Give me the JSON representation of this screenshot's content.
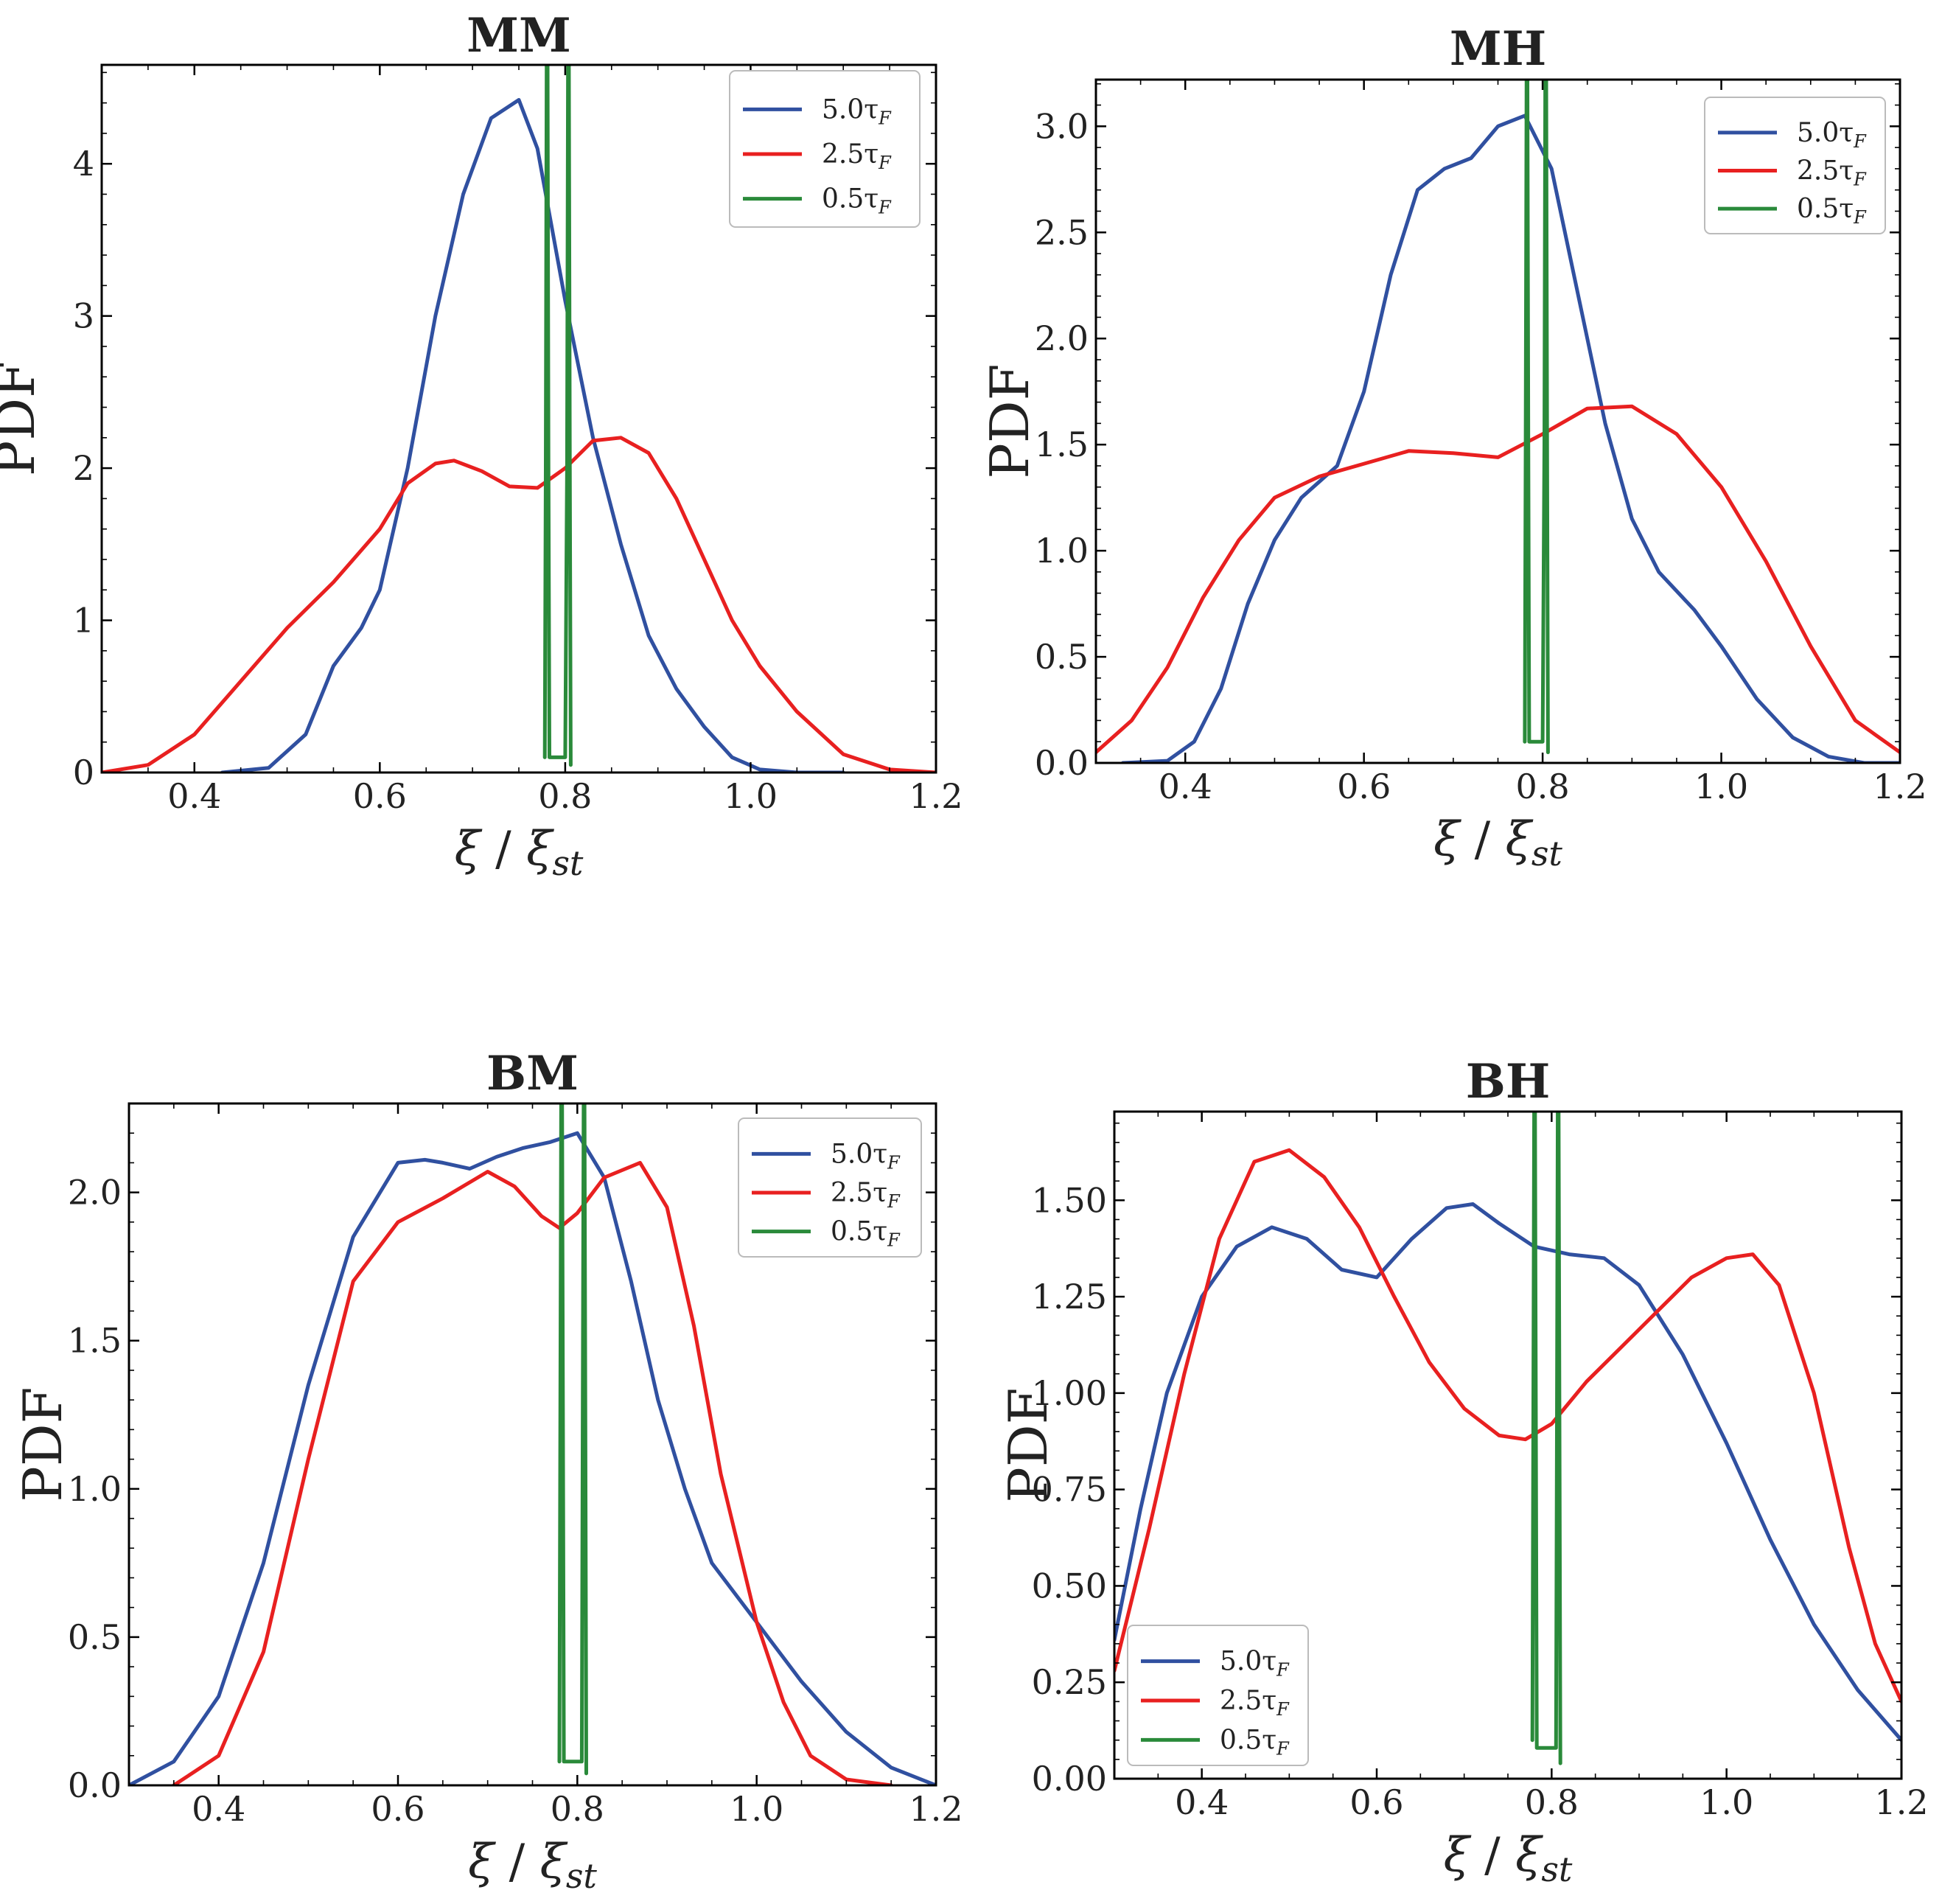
{
  "chart_data": [
    {
      "type": "line",
      "title": "MM",
      "xlabel": "ξ / ξ_st",
      "ylabel": "PDF",
      "xlim": [
        0.3,
        1.2
      ],
      "ylim": [
        0,
        4.65
      ],
      "xticks": [
        0.4,
        0.6,
        0.8,
        1.0,
        1.2
      ],
      "xtick_labels": [
        "0.4",
        "0.6",
        "0.8",
        "1.0",
        "1.2"
      ],
      "yticks": [
        0,
        1,
        2,
        3,
        4
      ],
      "ytick_labels": [
        "0",
        "1",
        "2",
        "3",
        "4"
      ],
      "legend_position": "top-right",
      "series": [
        {
          "name": "5.0τ_F",
          "color": "#3050a0",
          "x": [
            0.43,
            0.48,
            0.52,
            0.55,
            0.58,
            0.6,
            0.63,
            0.66,
            0.69,
            0.72,
            0.75,
            0.77,
            0.8,
            0.83,
            0.86,
            0.89,
            0.92,
            0.95,
            0.98,
            1.01,
            1.05,
            1.1
          ],
          "y": [
            0.0,
            0.03,
            0.25,
            0.7,
            0.95,
            1.2,
            2.0,
            3.0,
            3.8,
            4.3,
            4.42,
            4.1,
            3.1,
            2.2,
            1.5,
            0.9,
            0.55,
            0.3,
            0.1,
            0.02,
            0.0,
            0.0
          ]
        },
        {
          "name": "2.5τ_F",
          "color": "#e82020",
          "x": [
            0.3,
            0.35,
            0.4,
            0.45,
            0.5,
            0.55,
            0.6,
            0.63,
            0.66,
            0.68,
            0.71,
            0.74,
            0.77,
            0.8,
            0.83,
            0.86,
            0.89,
            0.92,
            0.95,
            0.98,
            1.01,
            1.05,
            1.1,
            1.15,
            1.2
          ],
          "y": [
            0.0,
            0.05,
            0.25,
            0.6,
            0.95,
            1.25,
            1.6,
            1.9,
            2.03,
            2.05,
            1.98,
            1.88,
            1.87,
            2.0,
            2.18,
            2.2,
            2.1,
            1.8,
            1.4,
            1.0,
            0.7,
            0.4,
            0.12,
            0.02,
            0.0
          ]
        },
        {
          "name": "0.5τ_F",
          "color": "#2a8a3a",
          "x": [
            0.778,
            0.779,
            0.78,
            0.781,
            0.782,
            0.783,
            0.8,
            0.802,
            0.803,
            0.804,
            0.805,
            0.806
          ],
          "y": [
            0.1,
            2.0,
            4.65,
            4.65,
            2.0,
            0.1,
            0.1,
            2.0,
            4.65,
            4.65,
            2.0,
            0.05
          ]
        }
      ]
    },
    {
      "type": "line",
      "title": "MH",
      "xlabel": "ξ / ξ_st",
      "ylabel": "PDF",
      "xlim": [
        0.3,
        1.2
      ],
      "ylim": [
        0,
        3.22
      ],
      "xticks": [
        0.4,
        0.6,
        0.8,
        1.0,
        1.2
      ],
      "xtick_labels": [
        "0.4",
        "0.6",
        "0.8",
        "1.0",
        "1.2"
      ],
      "yticks": [
        0.0,
        0.5,
        1.0,
        1.5,
        2.0,
        2.5,
        3.0
      ],
      "ytick_labels": [
        "0.0",
        "0.5",
        "1.0",
        "1.5",
        "2.0",
        "2.5",
        "3.0"
      ],
      "legend_position": "top-right",
      "series": [
        {
          "name": "5.0τ_F",
          "color": "#3050a0",
          "x": [
            0.33,
            0.38,
            0.41,
            0.44,
            0.47,
            0.5,
            0.53,
            0.57,
            0.6,
            0.63,
            0.66,
            0.69,
            0.72,
            0.75,
            0.78,
            0.81,
            0.84,
            0.87,
            0.9,
            0.93,
            0.97,
            1.0,
            1.04,
            1.08,
            1.12,
            1.16,
            1.2
          ],
          "y": [
            0.0,
            0.01,
            0.1,
            0.35,
            0.75,
            1.05,
            1.25,
            1.4,
            1.75,
            2.3,
            2.7,
            2.8,
            2.85,
            3.0,
            3.05,
            2.8,
            2.2,
            1.6,
            1.15,
            0.9,
            0.72,
            0.55,
            0.3,
            0.12,
            0.03,
            0.0,
            0.0
          ]
        },
        {
          "name": "2.5τ_F",
          "color": "#e82020",
          "x": [
            0.3,
            0.34,
            0.38,
            0.42,
            0.46,
            0.5,
            0.55,
            0.6,
            0.65,
            0.7,
            0.75,
            0.8,
            0.85,
            0.9,
            0.95,
            1.0,
            1.05,
            1.1,
            1.15,
            1.2
          ],
          "y": [
            0.05,
            0.2,
            0.45,
            0.78,
            1.05,
            1.25,
            1.35,
            1.41,
            1.47,
            1.46,
            1.44,
            1.55,
            1.67,
            1.68,
            1.55,
            1.3,
            0.95,
            0.55,
            0.2,
            0.05
          ]
        },
        {
          "name": "0.5τ_F",
          "color": "#2a8a3a",
          "x": [
            0.78,
            0.781,
            0.782,
            0.783,
            0.784,
            0.785,
            0.8,
            0.802,
            0.803,
            0.804,
            0.805,
            0.806
          ],
          "y": [
            0.1,
            1.5,
            3.22,
            3.22,
            1.5,
            0.1,
            0.1,
            1.5,
            3.22,
            3.22,
            1.5,
            0.05
          ]
        }
      ]
    },
    {
      "type": "line",
      "title": "BM",
      "xlabel": "ξ / ξ_st",
      "ylabel": "PDF",
      "xlim": [
        0.3,
        1.2
      ],
      "ylim": [
        0,
        2.3
      ],
      "xticks": [
        0.4,
        0.6,
        0.8,
        1.0,
        1.2
      ],
      "xtick_labels": [
        "0.4",
        "0.6",
        "0.8",
        "1.0",
        "1.2"
      ],
      "yticks": [
        0.0,
        0.5,
        1.0,
        1.5,
        2.0
      ],
      "ytick_labels": [
        "0.0",
        "0.5",
        "1.0",
        "1.5",
        "2.0"
      ],
      "legend_position": "top-right",
      "series": [
        {
          "name": "5.0τ_F",
          "color": "#3050a0",
          "x": [
            0.3,
            0.35,
            0.4,
            0.45,
            0.5,
            0.55,
            0.6,
            0.63,
            0.65,
            0.68,
            0.71,
            0.74,
            0.77,
            0.8,
            0.83,
            0.86,
            0.89,
            0.92,
            0.95,
            1.0,
            1.05,
            1.1,
            1.15,
            1.2
          ],
          "y": [
            0.0,
            0.08,
            0.3,
            0.75,
            1.35,
            1.85,
            2.1,
            2.11,
            2.1,
            2.08,
            2.12,
            2.15,
            2.17,
            2.2,
            2.05,
            1.7,
            1.3,
            1.0,
            0.75,
            0.55,
            0.35,
            0.18,
            0.06,
            0.0
          ]
        },
        {
          "name": "2.5τ_F",
          "color": "#e82020",
          "x": [
            0.35,
            0.4,
            0.45,
            0.5,
            0.55,
            0.6,
            0.65,
            0.7,
            0.73,
            0.76,
            0.78,
            0.8,
            0.83,
            0.87,
            0.9,
            0.93,
            0.96,
            1.0,
            1.03,
            1.06,
            1.1,
            1.15
          ],
          "y": [
            0.0,
            0.1,
            0.45,
            1.1,
            1.7,
            1.9,
            1.98,
            2.07,
            2.02,
            1.92,
            1.88,
            1.93,
            2.05,
            2.1,
            1.95,
            1.55,
            1.05,
            0.55,
            0.28,
            0.1,
            0.02,
            0.0
          ]
        },
        {
          "name": "0.5τ_F",
          "color": "#2a8a3a",
          "x": [
            0.78,
            0.781,
            0.782,
            0.783,
            0.784,
            0.785,
            0.805,
            0.806,
            0.807,
            0.808,
            0.809,
            0.81
          ],
          "y": [
            0.08,
            1.2,
            2.3,
            2.3,
            1.2,
            0.08,
            0.08,
            1.2,
            2.3,
            2.3,
            1.2,
            0.04
          ]
        }
      ]
    },
    {
      "type": "line",
      "title": "BH",
      "xlabel": "ξ / ξ_st",
      "ylabel": "PDF",
      "xlim": [
        0.3,
        1.2
      ],
      "ylim": [
        0,
        1.73
      ],
      "xticks": [
        0.4,
        0.6,
        0.8,
        1.0,
        1.2
      ],
      "xtick_labels": [
        "0.4",
        "0.6",
        "0.8",
        "1.0",
        "1.2"
      ],
      "yticks": [
        0.0,
        0.25,
        0.5,
        0.75,
        1.0,
        1.25,
        1.5
      ],
      "ytick_labels": [
        "0.00",
        "0.25",
        "0.50",
        "0.75",
        "1.00",
        "1.25",
        "1.50"
      ],
      "legend_position": "bottom-left",
      "series": [
        {
          "name": "5.0τ_F",
          "color": "#3050a0",
          "x": [
            0.3,
            0.33,
            0.36,
            0.4,
            0.44,
            0.48,
            0.52,
            0.56,
            0.6,
            0.64,
            0.68,
            0.71,
            0.74,
            0.78,
            0.82,
            0.86,
            0.9,
            0.95,
            1.0,
            1.05,
            1.1,
            1.15,
            1.2
          ],
          "y": [
            0.36,
            0.7,
            1.0,
            1.25,
            1.38,
            1.43,
            1.4,
            1.32,
            1.3,
            1.4,
            1.48,
            1.49,
            1.44,
            1.38,
            1.36,
            1.35,
            1.28,
            1.1,
            0.87,
            0.62,
            0.4,
            0.23,
            0.1
          ]
        },
        {
          "name": "2.5τ_F",
          "color": "#e82020",
          "x": [
            0.3,
            0.34,
            0.38,
            0.42,
            0.46,
            0.5,
            0.54,
            0.58,
            0.62,
            0.66,
            0.7,
            0.74,
            0.77,
            0.8,
            0.84,
            0.88,
            0.92,
            0.96,
            1.0,
            1.03,
            1.06,
            1.1,
            1.14,
            1.17,
            1.2
          ],
          "y": [
            0.28,
            0.65,
            1.05,
            1.4,
            1.6,
            1.63,
            1.56,
            1.43,
            1.25,
            1.08,
            0.96,
            0.89,
            0.88,
            0.92,
            1.03,
            1.12,
            1.21,
            1.3,
            1.35,
            1.36,
            1.28,
            1.0,
            0.6,
            0.35,
            0.2
          ]
        },
        {
          "name": "0.5τ_F",
          "color": "#2a8a3a",
          "x": [
            0.778,
            0.779,
            0.78,
            0.781,
            0.782,
            0.783,
            0.805,
            0.806,
            0.807,
            0.808,
            0.809,
            0.81
          ],
          "y": [
            0.1,
            0.9,
            1.73,
            1.73,
            0.9,
            0.08,
            0.08,
            0.9,
            1.73,
            1.73,
            0.9,
            0.04
          ]
        }
      ]
    }
  ],
  "legend_labels": {
    "s5": {
      "main": "5.0τ",
      "sub": "F"
    },
    "s25": {
      "main": "2.5τ",
      "sub": "F"
    },
    "s05": {
      "main": "0.5τ",
      "sub": "F"
    }
  },
  "xlabel_parts": {
    "num": "ξ",
    "slash": " / ",
    "den": "ξ",
    "den_sub": "st"
  },
  "ylabel_text": "PDF"
}
